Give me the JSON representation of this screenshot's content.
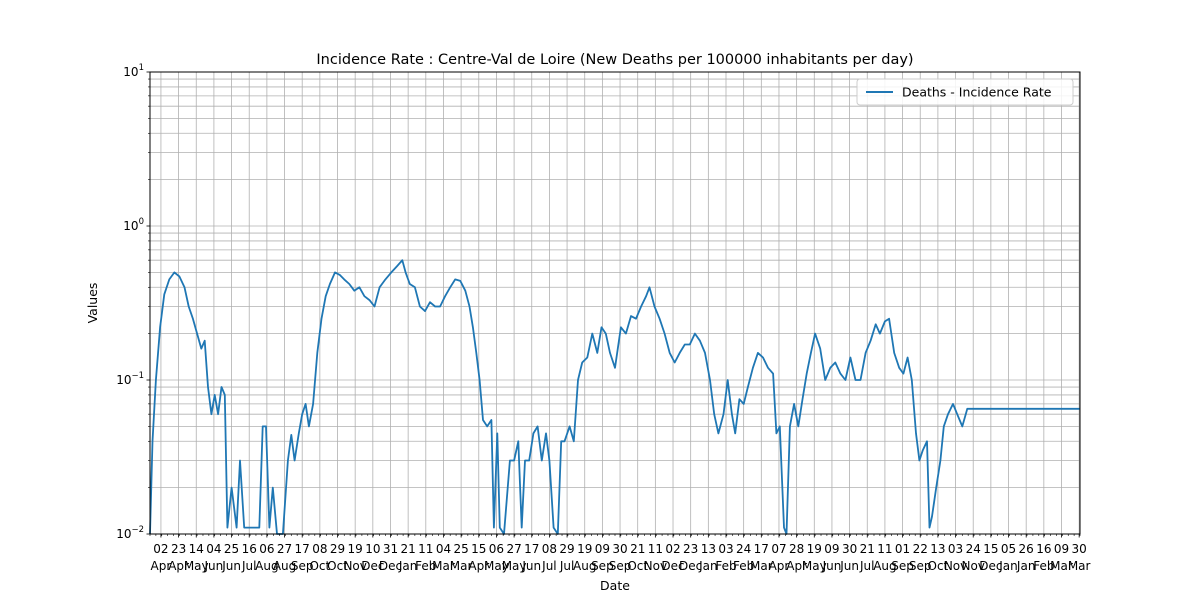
{
  "chart_data": {
    "type": "line",
    "title": "Incidence Rate : Centre-Val de Loire  (New Deaths per 100000 inhabitants per day)",
    "xlabel": "Date",
    "ylabel": "Values",
    "yscale": "log",
    "ylim": [
      0.01,
      10
    ],
    "y_ticks": [
      {
        "value": 0.01,
        "label": "10",
        "exp": "−2"
      },
      {
        "value": 0.1,
        "label": "10",
        "exp": "−1"
      },
      {
        "value": 1,
        "label": "10",
        "exp": "0"
      },
      {
        "value": 10,
        "label": "10",
        "exp": "1"
      }
    ],
    "xlim": [
      "2020-03-20",
      "2023-03-31"
    ],
    "grid": true,
    "legend_position": "top-right",
    "line_color": "#1f77b4",
    "x_ticks": [
      {
        "date": "2020-04-02",
        "day": "02",
        "month": "Apr"
      },
      {
        "date": "2020-04-23",
        "day": "23",
        "month": "Apr"
      },
      {
        "date": "2020-05-14",
        "day": "14",
        "month": "May"
      },
      {
        "date": "2020-06-04",
        "day": "04",
        "month": "Jun"
      },
      {
        "date": "2020-06-25",
        "day": "25",
        "month": "Jun"
      },
      {
        "date": "2020-07-16",
        "day": "16",
        "month": "Jul"
      },
      {
        "date": "2020-08-06",
        "day": "06",
        "month": "Aug"
      },
      {
        "date": "2020-08-27",
        "day": "27",
        "month": "Aug"
      },
      {
        "date": "2020-09-17",
        "day": "17",
        "month": "Sep"
      },
      {
        "date": "2020-10-08",
        "day": "08",
        "month": "Oct"
      },
      {
        "date": "2020-10-29",
        "day": "29",
        "month": "Oct"
      },
      {
        "date": "2020-11-19",
        "day": "19",
        "month": "Nov"
      },
      {
        "date": "2020-12-10",
        "day": "10",
        "month": "Dec"
      },
      {
        "date": "2020-12-31",
        "day": "31",
        "month": "Dec"
      },
      {
        "date": "2021-01-21",
        "day": "21",
        "month": "Jan"
      },
      {
        "date": "2021-02-11",
        "day": "11",
        "month": "Feb"
      },
      {
        "date": "2021-03-04",
        "day": "04",
        "month": "Mar"
      },
      {
        "date": "2021-03-25",
        "day": "25",
        "month": "Mar"
      },
      {
        "date": "2021-04-15",
        "day": "15",
        "month": "Apr"
      },
      {
        "date": "2021-05-06",
        "day": "06",
        "month": "May"
      },
      {
        "date": "2021-05-27",
        "day": "27",
        "month": "May"
      },
      {
        "date": "2021-06-17",
        "day": "17",
        "month": "Jun"
      },
      {
        "date": "2021-07-08",
        "day": "08",
        "month": "Jul"
      },
      {
        "date": "2021-07-29",
        "day": "29",
        "month": "Jul"
      },
      {
        "date": "2021-08-19",
        "day": "19",
        "month": "Aug"
      },
      {
        "date": "2021-09-09",
        "day": "09",
        "month": "Sep"
      },
      {
        "date": "2021-09-30",
        "day": "30",
        "month": "Sep"
      },
      {
        "date": "2021-10-21",
        "day": "21",
        "month": "Oct"
      },
      {
        "date": "2021-11-11",
        "day": "11",
        "month": "Nov"
      },
      {
        "date": "2021-12-02",
        "day": "02",
        "month": "Dec"
      },
      {
        "date": "2021-12-23",
        "day": "23",
        "month": "Dec"
      },
      {
        "date": "2022-01-13",
        "day": "13",
        "month": "Jan"
      },
      {
        "date": "2022-02-03",
        "day": "03",
        "month": "Feb"
      },
      {
        "date": "2022-02-24",
        "day": "24",
        "month": "Feb"
      },
      {
        "date": "2022-03-17",
        "day": "17",
        "month": "Mar"
      },
      {
        "date": "2022-04-07",
        "day": "07",
        "month": "Apr"
      },
      {
        "date": "2022-04-28",
        "day": "28",
        "month": "Apr"
      },
      {
        "date": "2022-05-19",
        "day": "19",
        "month": "May"
      },
      {
        "date": "2022-06-09",
        "day": "09",
        "month": "Jun"
      },
      {
        "date": "2022-06-30",
        "day": "30",
        "month": "Jun"
      },
      {
        "date": "2022-07-21",
        "day": "21",
        "month": "Jul"
      },
      {
        "date": "2022-08-11",
        "day": "11",
        "month": "Aug"
      },
      {
        "date": "2022-09-01",
        "day": "01",
        "month": "Sep"
      },
      {
        "date": "2022-09-22",
        "day": "22",
        "month": "Sep"
      },
      {
        "date": "2022-10-13",
        "day": "13",
        "month": "Oct"
      },
      {
        "date": "2022-11-03",
        "day": "03",
        "month": "Nov"
      },
      {
        "date": "2022-11-24",
        "day": "24",
        "month": "Nov"
      },
      {
        "date": "2022-12-15",
        "day": "15",
        "month": "Dec"
      },
      {
        "date": "2023-01-05",
        "day": "05",
        "month": "Jan"
      },
      {
        "date": "2023-01-26",
        "day": "26",
        "month": "Jan"
      },
      {
        "date": "2023-02-16",
        "day": "16",
        "month": "Feb"
      },
      {
        "date": "2023-03-09",
        "day": "09",
        "month": "Mar"
      },
      {
        "date": "2023-03-30",
        "day": "30",
        "month": "Mar"
      }
    ],
    "series": [
      {
        "name": "Deaths - Incidence Rate",
        "points": [
          [
            "2020-03-20",
            0.01
          ],
          [
            "2020-03-23",
            0.04
          ],
          [
            "2020-03-27",
            0.1
          ],
          [
            "2020-04-01",
            0.22
          ],
          [
            "2020-04-06",
            0.36
          ],
          [
            "2020-04-12",
            0.45
          ],
          [
            "2020-04-18",
            0.5
          ],
          [
            "2020-04-24",
            0.47
          ],
          [
            "2020-04-30",
            0.4
          ],
          [
            "2020-05-05",
            0.3
          ],
          [
            "2020-05-10",
            0.25
          ],
          [
            "2020-05-15",
            0.2
          ],
          [
            "2020-05-20",
            0.16
          ],
          [
            "2020-05-24",
            0.18
          ],
          [
            "2020-05-28",
            0.09
          ],
          [
            "2020-06-01",
            0.06
          ],
          [
            "2020-06-05",
            0.08
          ],
          [
            "2020-06-09",
            0.06
          ],
          [
            "2020-06-13",
            0.09
          ],
          [
            "2020-06-17",
            0.08
          ],
          [
            "2020-06-20",
            0.011
          ],
          [
            "2020-06-25",
            0.02
          ],
          [
            "2020-07-01",
            0.011
          ],
          [
            "2020-07-05",
            0.03
          ],
          [
            "2020-07-10",
            0.011
          ],
          [
            "2020-07-20",
            0.011
          ],
          [
            "2020-07-28",
            0.011
          ],
          [
            "2020-08-01",
            0.05
          ],
          [
            "2020-08-05",
            0.05
          ],
          [
            "2020-08-09",
            0.011
          ],
          [
            "2020-08-13",
            0.02
          ],
          [
            "2020-08-18",
            0.01
          ],
          [
            "2020-08-25",
            0.01
          ],
          [
            "2020-08-31",
            0.03
          ],
          [
            "2020-09-04",
            0.044
          ],
          [
            "2020-09-08",
            0.03
          ],
          [
            "2020-09-13",
            0.045
          ],
          [
            "2020-09-17",
            0.06
          ],
          [
            "2020-09-21",
            0.07
          ],
          [
            "2020-09-25",
            0.05
          ],
          [
            "2020-09-30",
            0.07
          ],
          [
            "2020-10-05",
            0.15
          ],
          [
            "2020-10-10",
            0.25
          ],
          [
            "2020-10-15",
            0.35
          ],
          [
            "2020-10-20",
            0.42
          ],
          [
            "2020-10-26",
            0.5
          ],
          [
            "2020-11-01",
            0.48
          ],
          [
            "2020-11-06",
            0.45
          ],
          [
            "2020-11-12",
            0.42
          ],
          [
            "2020-11-18",
            0.38
          ],
          [
            "2020-11-24",
            0.4
          ],
          [
            "2020-11-30",
            0.35
          ],
          [
            "2020-12-06",
            0.33
          ],
          [
            "2020-12-12",
            0.3
          ],
          [
            "2020-12-18",
            0.4
          ],
          [
            "2020-12-25",
            0.45
          ],
          [
            "2021-01-01",
            0.5
          ],
          [
            "2021-01-08",
            0.55
          ],
          [
            "2021-01-14",
            0.6
          ],
          [
            "2021-01-18",
            0.5
          ],
          [
            "2021-01-23",
            0.42
          ],
          [
            "2021-01-29",
            0.4
          ],
          [
            "2021-02-04",
            0.3
          ],
          [
            "2021-02-10",
            0.28
          ],
          [
            "2021-02-16",
            0.32
          ],
          [
            "2021-02-22",
            0.3
          ],
          [
            "2021-02-28",
            0.3
          ],
          [
            "2021-03-06",
            0.35
          ],
          [
            "2021-03-12",
            0.4
          ],
          [
            "2021-03-18",
            0.45
          ],
          [
            "2021-03-24",
            0.44
          ],
          [
            "2021-03-30",
            0.38
          ],
          [
            "2021-04-04",
            0.3
          ],
          [
            "2021-04-08",
            0.22
          ],
          [
            "2021-04-12",
            0.15
          ],
          [
            "2021-04-16",
            0.1
          ],
          [
            "2021-04-20",
            0.055
          ],
          [
            "2021-04-25",
            0.05
          ],
          [
            "2021-04-30",
            0.055
          ],
          [
            "2021-05-03",
            0.011
          ],
          [
            "2021-05-07",
            0.045
          ],
          [
            "2021-05-10",
            0.011
          ],
          [
            "2021-05-15",
            0.01
          ],
          [
            "2021-05-22",
            0.03
          ],
          [
            "2021-05-27",
            0.03
          ],
          [
            "2021-06-01",
            0.04
          ],
          [
            "2021-06-05",
            0.011
          ],
          [
            "2021-06-09",
            0.03
          ],
          [
            "2021-06-14",
            0.03
          ],
          [
            "2021-06-19",
            0.045
          ],
          [
            "2021-06-24",
            0.05
          ],
          [
            "2021-06-29",
            0.03
          ],
          [
            "2021-07-04",
            0.045
          ],
          [
            "2021-07-08",
            0.03
          ],
          [
            "2021-07-13",
            0.011
          ],
          [
            "2021-07-18",
            0.01
          ],
          [
            "2021-07-22",
            0.04
          ],
          [
            "2021-07-26",
            0.04
          ],
          [
            "2021-08-01",
            0.05
          ],
          [
            "2021-08-06",
            0.04
          ],
          [
            "2021-08-11",
            0.1
          ],
          [
            "2021-08-16",
            0.13
          ],
          [
            "2021-08-22",
            0.14
          ],
          [
            "2021-08-28",
            0.2
          ],
          [
            "2021-09-03",
            0.15
          ],
          [
            "2021-09-08",
            0.22
          ],
          [
            "2021-09-13",
            0.2
          ],
          [
            "2021-09-18",
            0.15
          ],
          [
            "2021-09-24",
            0.12
          ],
          [
            "2021-10-01",
            0.22
          ],
          [
            "2021-10-07",
            0.2
          ],
          [
            "2021-10-13",
            0.26
          ],
          [
            "2021-10-19",
            0.25
          ],
          [
            "2021-10-25",
            0.3
          ],
          [
            "2021-10-31",
            0.35
          ],
          [
            "2021-11-04",
            0.4
          ],
          [
            "2021-11-10",
            0.3
          ],
          [
            "2021-11-16",
            0.25
          ],
          [
            "2021-11-22",
            0.2
          ],
          [
            "2021-11-28",
            0.15
          ],
          [
            "2021-12-04",
            0.13
          ],
          [
            "2021-12-10",
            0.15
          ],
          [
            "2021-12-16",
            0.17
          ],
          [
            "2021-12-22",
            0.17
          ],
          [
            "2021-12-28",
            0.2
          ],
          [
            "2022-01-03",
            0.18
          ],
          [
            "2022-01-09",
            0.15
          ],
          [
            "2022-01-15",
            0.1
          ],
          [
            "2022-01-20",
            0.06
          ],
          [
            "2022-01-25",
            0.045
          ],
          [
            "2022-01-31",
            0.06
          ],
          [
            "2022-02-05",
            0.1
          ],
          [
            "2022-02-10",
            0.06
          ],
          [
            "2022-02-14",
            0.045
          ],
          [
            "2022-02-19",
            0.075
          ],
          [
            "2022-02-24",
            0.07
          ],
          [
            "2022-03-01",
            0.09
          ],
          [
            "2022-03-07",
            0.12
          ],
          [
            "2022-03-13",
            0.15
          ],
          [
            "2022-03-19",
            0.14
          ],
          [
            "2022-03-25",
            0.12
          ],
          [
            "2022-03-31",
            0.11
          ],
          [
            "2022-04-04",
            0.045
          ],
          [
            "2022-04-08",
            0.05
          ],
          [
            "2022-04-13",
            0.011
          ],
          [
            "2022-04-16",
            0.01
          ],
          [
            "2022-04-20",
            0.05
          ],
          [
            "2022-04-25",
            0.07
          ],
          [
            "2022-04-30",
            0.05
          ],
          [
            "2022-05-05",
            0.075
          ],
          [
            "2022-05-10",
            0.11
          ],
          [
            "2022-05-15",
            0.15
          ],
          [
            "2022-05-20",
            0.2
          ],
          [
            "2022-05-26",
            0.16
          ],
          [
            "2022-06-01",
            0.1
          ],
          [
            "2022-06-07",
            0.12
          ],
          [
            "2022-06-13",
            0.13
          ],
          [
            "2022-06-19",
            0.11
          ],
          [
            "2022-06-25",
            0.1
          ],
          [
            "2022-07-01",
            0.14
          ],
          [
            "2022-07-07",
            0.1
          ],
          [
            "2022-07-13",
            0.1
          ],
          [
            "2022-07-19",
            0.15
          ],
          [
            "2022-07-25",
            0.18
          ],
          [
            "2022-07-31",
            0.23
          ],
          [
            "2022-08-05",
            0.2
          ],
          [
            "2022-08-11",
            0.24
          ],
          [
            "2022-08-16",
            0.25
          ],
          [
            "2022-08-22",
            0.15
          ],
          [
            "2022-08-28",
            0.12
          ],
          [
            "2022-09-02",
            0.11
          ],
          [
            "2022-09-07",
            0.14
          ],
          [
            "2022-09-12",
            0.1
          ],
          [
            "2022-09-17",
            0.045
          ],
          [
            "2022-09-21",
            0.03
          ],
          [
            "2022-09-25",
            0.035
          ],
          [
            "2022-09-30",
            0.04
          ],
          [
            "2022-10-03",
            0.011
          ],
          [
            "2022-10-06",
            0.013
          ],
          [
            "2022-10-11",
            0.02
          ],
          [
            "2022-10-16",
            0.03
          ],
          [
            "2022-10-20",
            0.05
          ],
          [
            "2022-10-25",
            0.06
          ],
          [
            "2022-10-31",
            0.07
          ],
          [
            "2022-11-05",
            0.06
          ],
          [
            "2022-11-11",
            0.05
          ],
          [
            "2022-11-17",
            0.065
          ],
          [
            "2022-11-21",
            0.065
          ],
          [
            "2023-03-31",
            0.065
          ]
        ]
      }
    ]
  }
}
